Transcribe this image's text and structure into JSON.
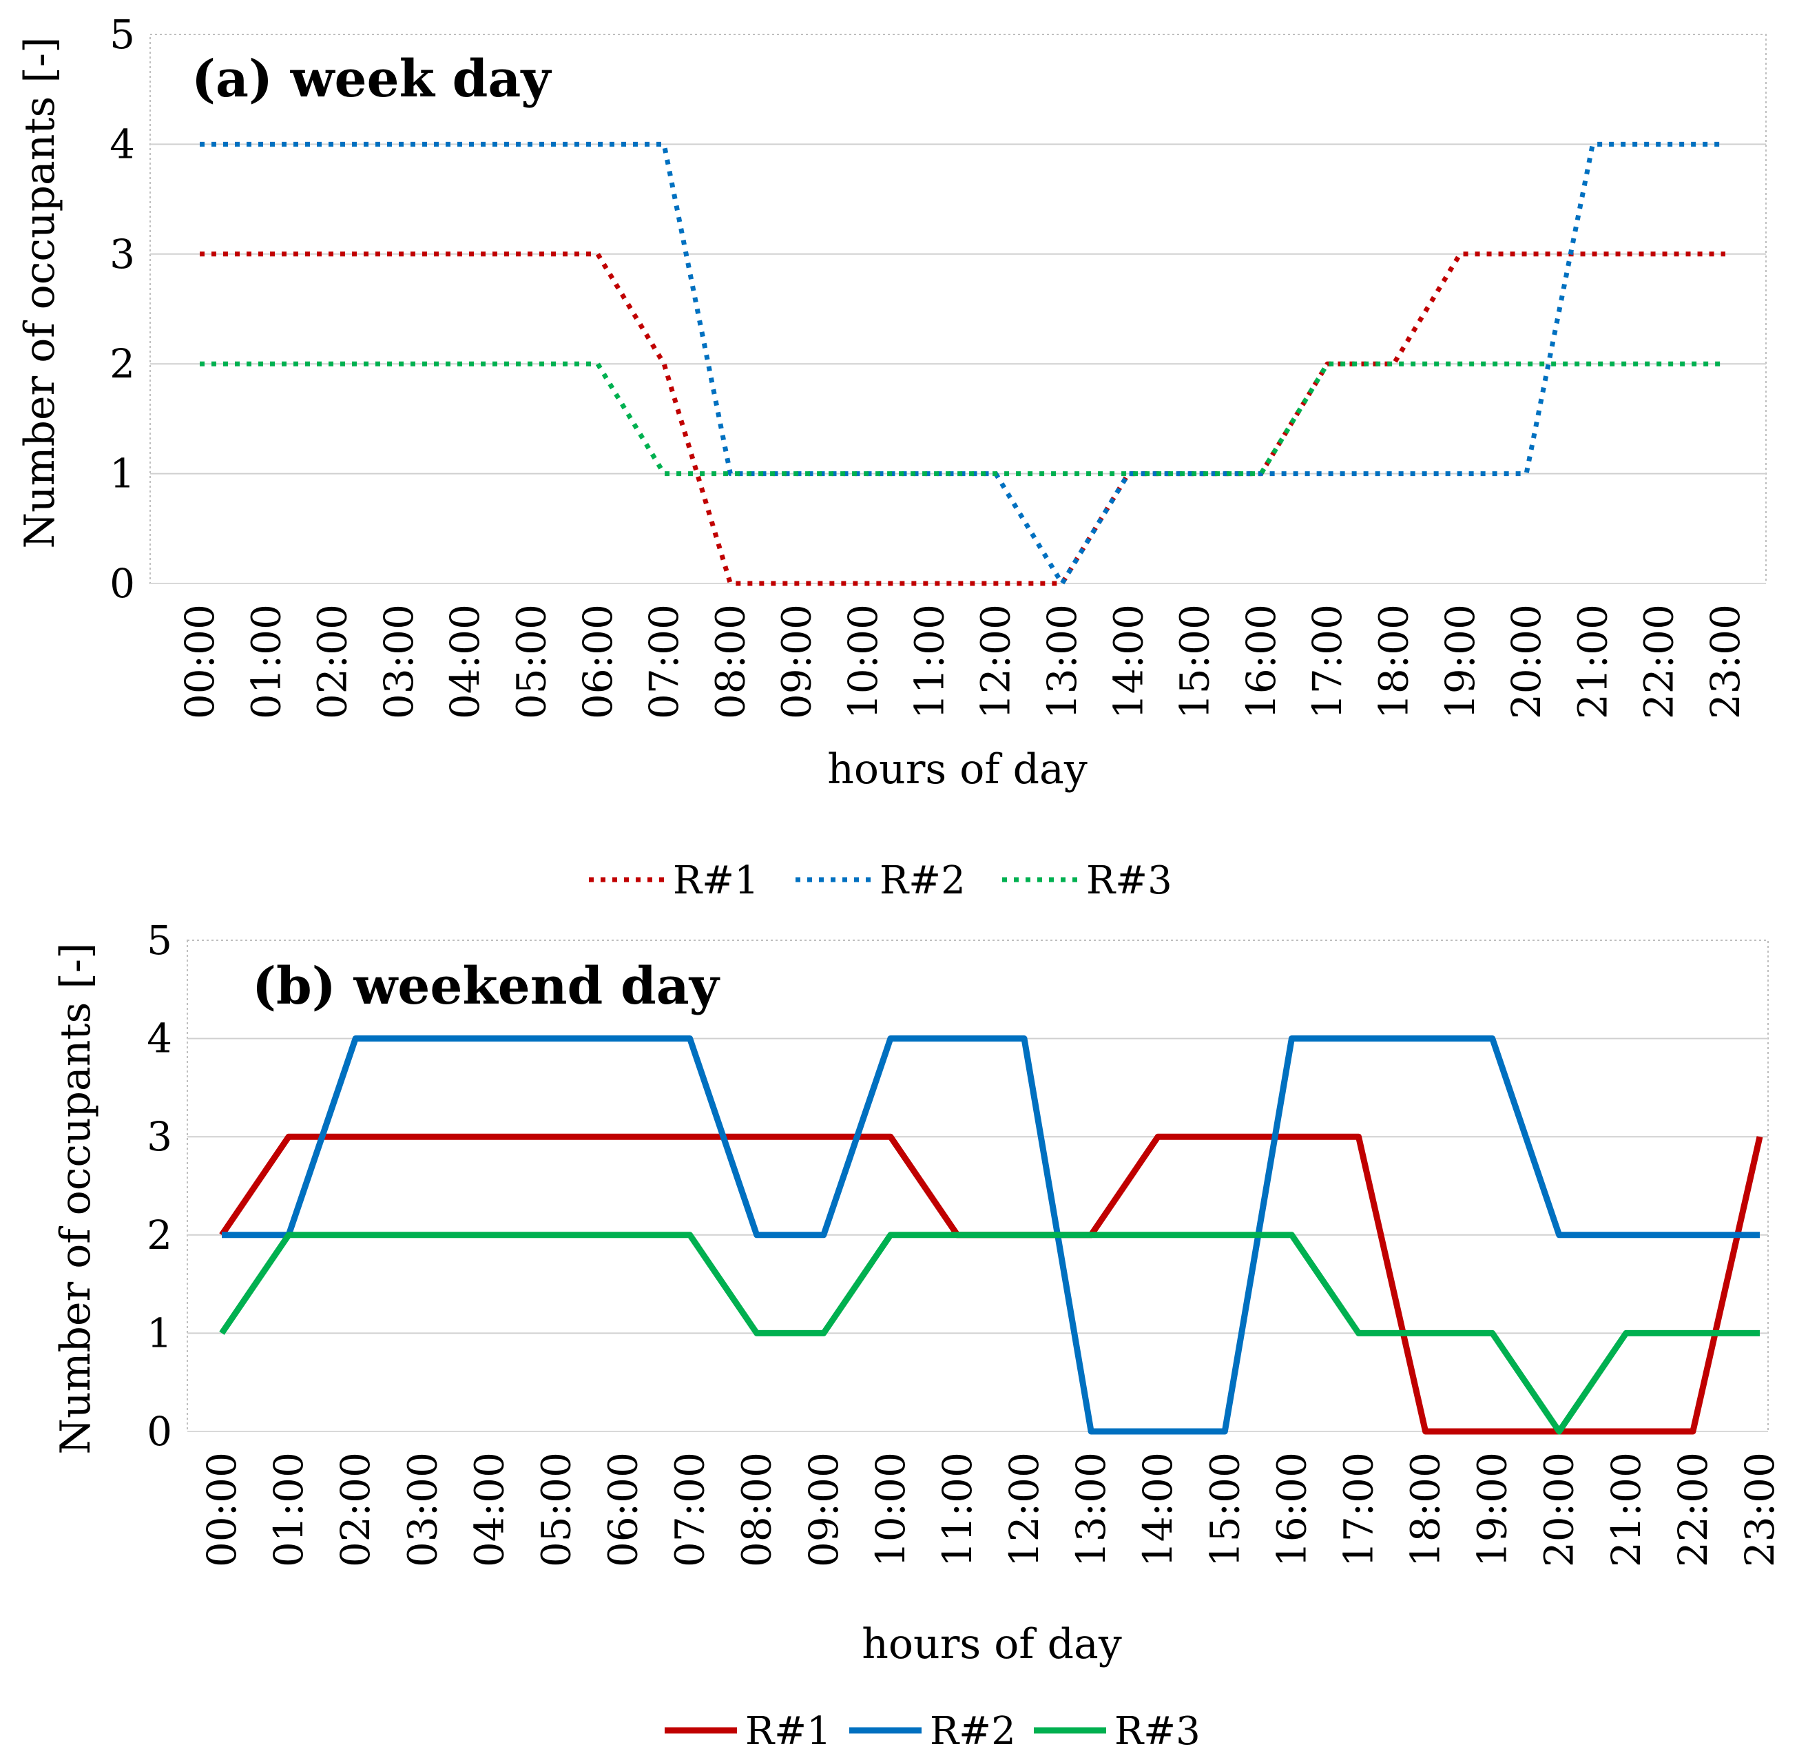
{
  "chart_data": [
    {
      "id": "week-day",
      "type": "line",
      "title": "(a) week day",
      "xlabel": "hours of day",
      "ylabel": "Number of occupants [-]",
      "ylim": [
        0,
        5
      ],
      "yticks": [
        "0",
        "1",
        "2",
        "3",
        "4",
        "5"
      ],
      "line_style": "dotted",
      "grid": true,
      "legend_position": "bottom-center",
      "categories": [
        "00:00",
        "01:00",
        "02:00",
        "03:00",
        "04:00",
        "05:00",
        "06:00",
        "07:00",
        "08:00",
        "09:00",
        "10:00",
        "11:00",
        "12:00",
        "13:00",
        "14:00",
        "15:00",
        "16:00",
        "17:00",
        "18:00",
        "19:00",
        "20:00",
        "21:00",
        "22:00",
        "23:00"
      ],
      "series": [
        {
          "name": "R#1",
          "color": "#C00000",
          "values": [
            3,
            3,
            3,
            3,
            3,
            3,
            3,
            2,
            0,
            0,
            0,
            0,
            0,
            0,
            1,
            1,
            1,
            2,
            2,
            3,
            3,
            3,
            3,
            3
          ]
        },
        {
          "name": "R#2",
          "color": "#0070C0",
          "values": [
            4,
            4,
            4,
            4,
            4,
            4,
            4,
            4,
            1,
            1,
            1,
            1,
            1,
            0,
            1,
            1,
            1,
            1,
            1,
            1,
            1,
            4,
            4,
            4
          ]
        },
        {
          "name": "R#3",
          "color": "#00B050",
          "values": [
            2,
            2,
            2,
            2,
            2,
            2,
            2,
            1,
            1,
            1,
            1,
            1,
            1,
            1,
            1,
            1,
            1,
            2,
            2,
            2,
            2,
            2,
            2,
            2
          ]
        }
      ]
    },
    {
      "id": "weekend-day",
      "type": "line",
      "title": "(b) weekend day",
      "xlabel": "hours of day",
      "ylabel": "Number of occupants [-]",
      "ylim": [
        0,
        5
      ],
      "yticks": [
        "0",
        "1",
        "2",
        "3",
        "4",
        "5"
      ],
      "line_style": "solid",
      "grid": true,
      "legend_position": "bottom-center",
      "categories": [
        "00:00",
        "01:00",
        "02:00",
        "03:00",
        "04:00",
        "05:00",
        "06:00",
        "07:00",
        "08:00",
        "09:00",
        "10:00",
        "11:00",
        "12:00",
        "13:00",
        "14:00",
        "15:00",
        "16:00",
        "17:00",
        "18:00",
        "19:00",
        "20:00",
        "21:00",
        "22:00",
        "23:00"
      ],
      "series": [
        {
          "name": "R#1",
          "color": "#C00000",
          "values": [
            2,
            3,
            3,
            3,
            3,
            3,
            3,
            3,
            3,
            3,
            3,
            2,
            2,
            2,
            3,
            3,
            3,
            3,
            0,
            0,
            0,
            0,
            0,
            3
          ]
        },
        {
          "name": "R#2",
          "color": "#0070C0",
          "values": [
            2,
            2,
            4,
            4,
            4,
            4,
            4,
            4,
            2,
            2,
            4,
            4,
            4,
            0,
            0,
            0,
            4,
            4,
            4,
            4,
            2,
            2,
            2,
            2
          ]
        },
        {
          "name": "R#3",
          "color": "#00B050",
          "values": [
            1,
            2,
            2,
            2,
            2,
            2,
            2,
            2,
            1,
            1,
            2,
            2,
            2,
            2,
            2,
            2,
            2,
            1,
            1,
            1,
            0,
            1,
            1,
            1
          ]
        }
      ]
    }
  ]
}
